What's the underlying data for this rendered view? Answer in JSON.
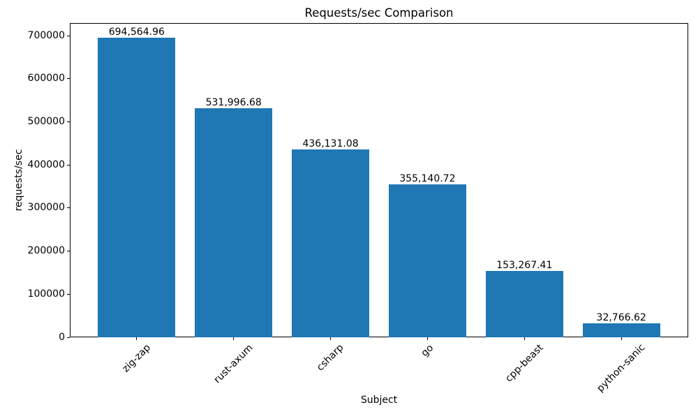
{
  "chart_data": {
    "type": "bar",
    "title": "Requests/sec Comparison",
    "xlabel": "Subject",
    "ylabel": "requests/sec",
    "categories": [
      "zig-zap",
      "rust-axum",
      "csharp",
      "go",
      "cpp-beast",
      "python-sanic"
    ],
    "values": [
      694564.96,
      531996.68,
      436131.08,
      355140.72,
      153267.41,
      32766.62
    ],
    "value_labels": [
      "694,564.96",
      "531,996.68",
      "436,131.08",
      "355,140.72",
      "153,267.41",
      "32,766.62"
    ],
    "bar_color": "#1f77b4",
    "axis_color": "#000000",
    "background_color": "#ffffff",
    "ylim": [
      0,
      729293.21
    ],
    "yticks": [
      0,
      100000,
      200000,
      300000,
      400000,
      500000,
      600000,
      700000
    ],
    "ytick_labels": [
      "0",
      "100000",
      "200000",
      "300000",
      "400000",
      "500000",
      "600000",
      "700000"
    ],
    "grid": false,
    "legend": null,
    "bar_width_fraction": 0.8,
    "x_margin_fraction": 0.05,
    "xtick_rotation_deg": 45
  }
}
